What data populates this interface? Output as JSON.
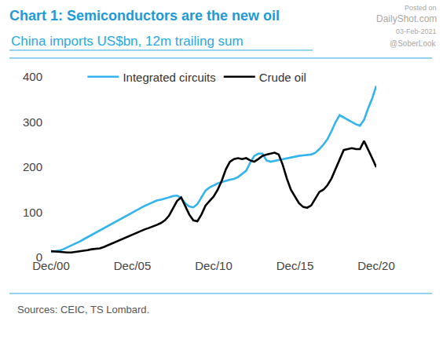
{
  "chart_data": {
    "type": "line",
    "title": "Chart 1: Semiconductors are the new oil",
    "subtitle": "China imports US$bn, 12m trailing sum",
    "source": "Sources: CEIC, TS Lombard.",
    "annotations": [
      "Posted on",
      "DailyShot.com",
      "03-Feb-2021",
      "@SoberLook"
    ],
    "categories": [
      "Dec/00",
      null,
      null,
      null,
      null,
      null,
      null,
      null,
      null,
      null,
      null,
      null,
      null,
      null,
      null,
      null,
      null,
      null,
      null,
      null,
      "Dec/05",
      null,
      null,
      null,
      null,
      null,
      null,
      null,
      null,
      null,
      null,
      null,
      null,
      null,
      null,
      null,
      null,
      null,
      null,
      null,
      "Dec/10",
      null,
      null,
      null,
      null,
      null,
      null,
      null,
      null,
      null,
      null,
      null,
      null,
      null,
      null,
      null,
      null,
      null,
      null,
      null,
      "Dec/15",
      null,
      null,
      null,
      null,
      null,
      null,
      null,
      null,
      null,
      null,
      null,
      null,
      null,
      null,
      null,
      null,
      null,
      null,
      null,
      "Dec/20"
    ],
    "series": [
      {
        "name": "Integrated circuits",
        "color": "#33b4ee",
        "values": [
          12,
          13,
          15,
          18,
          22,
          26,
          30,
          35,
          40,
          45,
          50,
          55,
          60,
          65,
          70,
          75,
          80,
          85,
          90,
          95,
          100,
          104,
          109,
          114,
          118,
          122,
          126,
          128,
          130,
          133,
          136,
          137,
          132,
          120,
          113,
          111,
          118,
          132,
          148,
          155,
          160,
          164,
          167,
          170,
          172,
          174,
          178,
          185,
          192,
          210,
          225,
          230,
          230,
          215,
          212,
          214,
          216,
          218,
          220,
          222,
          224,
          225,
          226,
          227,
          228,
          232,
          240,
          250,
          262,
          280,
          300,
          315,
          310,
          305,
          300,
          295,
          292,
          305,
          330,
          352,
          380
        ]
      },
      {
        "name": "Crude oil",
        "color": "#000000",
        "values": [
          14,
          13,
          12,
          11,
          11,
          11,
          12,
          13,
          14,
          16,
          18,
          19,
          20,
          23,
          27,
          31,
          35,
          39,
          43,
          47,
          50,
          54,
          58,
          62,
          65,
          68,
          72,
          76,
          82,
          92,
          108,
          125,
          133,
          115,
          95,
          82,
          80,
          95,
          115,
          125,
          135,
          150,
          170,
          195,
          212,
          218,
          220,
          218,
          220,
          215,
          212,
          218,
          225,
          228,
          230,
          232,
          228,
          205,
          175,
          150,
          135,
          120,
          112,
          110,
          115,
          130,
          145,
          150,
          160,
          175,
          195,
          215,
          238,
          240,
          242,
          240,
          240,
          258,
          240,
          220,
          200
        ]
      }
    ],
    "ylim": [
      0,
      400
    ],
    "yticks": [
      0,
      100,
      200,
      300,
      400
    ],
    "grid": false,
    "legend": "top"
  }
}
